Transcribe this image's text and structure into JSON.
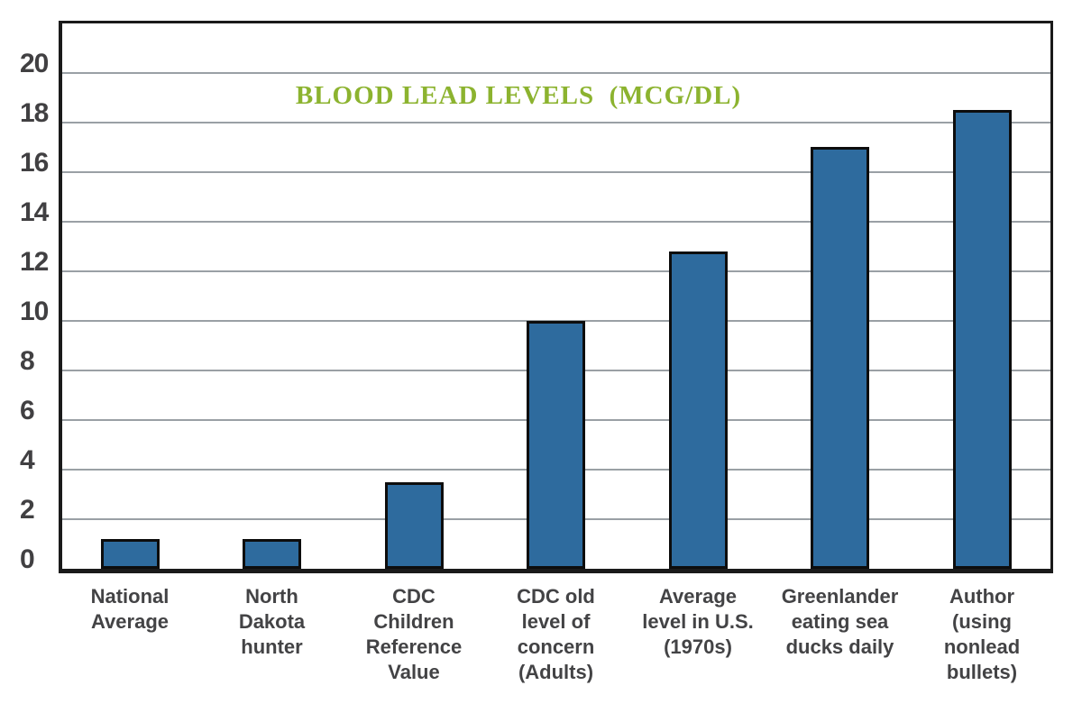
{
  "chart_data": {
    "type": "bar",
    "title": "BLOOD LEAD LEVELS  (MCG/DL)",
    "categories": [
      "National\nAverage",
      "North\nDakota\nhunter",
      "CDC\nChildren\nReference\nValue",
      "CDC old\nlevel of\nconcern\n(Adults)",
      "Average\nlevel in U.S.\n(1970s)",
      "Greenlander\neating sea\nducks daily",
      "Author\n(using\nnonlead\nbullets)"
    ],
    "values": [
      1.2,
      1.2,
      3.5,
      10,
      12.8,
      17,
      18.5
    ],
    "xlabel": "",
    "ylabel": "",
    "ylim": [
      0,
      22
    ],
    "yticks": [
      0,
      2,
      4,
      6,
      8,
      10,
      12,
      14,
      16,
      18,
      20
    ],
    "grid": true,
    "legend": false,
    "colors": {
      "title": "#8CB32F",
      "bar_fill": "#2E6B9E",
      "bar_border": "#0D0D0D",
      "gridline": "#9AA0A5",
      "frame": "#1A1A1A",
      "tick_labels": "#414042"
    }
  }
}
